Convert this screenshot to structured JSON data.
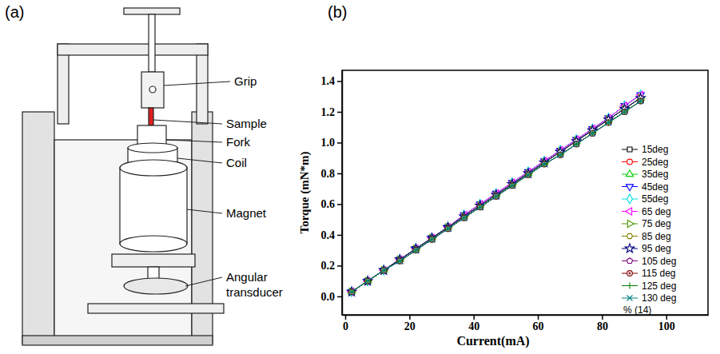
{
  "figure": {
    "panel_a": {
      "label": "(a)",
      "parts": [
        "Grip",
        "Sample",
        "Fork",
        "Coil",
        "Magnet",
        "Angular transducer"
      ]
    }
  },
  "chart_data": {
    "type": "line",
    "panel_label": "(b)",
    "x_label": "Current(mA)",
    "y_label": "Torque (mN*m)",
    "xlim": [
      -1,
      113
    ],
    "xticks": [
      0,
      20,
      40,
      60,
      80,
      100
    ],
    "ylim": [
      -0.12,
      1.47
    ],
    "yticks": [
      {
        "value": 0,
        "label": "0.0"
      },
      0.2,
      0.4,
      0.6,
      0.8,
      {
        "value": 1,
        "label": "1.0"
      },
      1.2,
      1.4
    ],
    "legend": "lower right",
    "annotations": [
      "% (14)"
    ],
    "x": [
      2,
      7,
      12,
      17,
      22,
      27,
      32,
      37,
      42,
      47,
      52,
      57,
      62,
      67,
      72,
      77,
      82,
      87,
      92
    ],
    "series": [
      {
        "name": "15deg",
        "color": "#000000",
        "marker": "square",
        "values": [
          0.03,
          0.1,
          0.17,
          0.24,
          0.31,
          0.38,
          0.45,
          0.52,
          0.59,
          0.66,
          0.73,
          0.8,
          0.87,
          0.94,
          1.01,
          1.08,
          1.15,
          1.22,
          1.29
        ]
      },
      {
        "name": "25deg",
        "color": "#ff0000",
        "marker": "circle",
        "values": [
          0.03,
          0.1,
          0.17,
          0.24,
          0.31,
          0.38,
          0.45,
          0.52,
          0.59,
          0.66,
          0.73,
          0.8,
          0.87,
          0.94,
          1.01,
          1.08,
          1.15,
          1.22,
          1.29
        ]
      },
      {
        "name": "35deg",
        "color": "#00cc00",
        "marker": "triangle-up",
        "values": [
          0.03,
          0.1,
          0.17,
          0.24,
          0.31,
          0.38,
          0.45,
          0.52,
          0.59,
          0.66,
          0.73,
          0.8,
          0.87,
          0.94,
          1.01,
          1.08,
          1.15,
          1.22,
          1.29
        ]
      },
      {
        "name": "45deg",
        "color": "#0000ff",
        "marker": "triangle-down",
        "values": [
          0.03,
          0.1,
          0.17,
          0.24,
          0.31,
          0.38,
          0.45,
          0.53,
          0.6,
          0.67,
          0.74,
          0.81,
          0.88,
          0.95,
          1.02,
          1.09,
          1.16,
          1.24,
          1.31
        ]
      },
      {
        "name": "55deg",
        "color": "#00e0e0",
        "marker": "diamond",
        "values": [
          0.03,
          0.1,
          0.17,
          0.24,
          0.31,
          0.38,
          0.45,
          0.53,
          0.6,
          0.67,
          0.74,
          0.81,
          0.88,
          0.95,
          1.02,
          1.09,
          1.16,
          1.24,
          1.31
        ]
      },
      {
        "name": "65 deg",
        "color": "#ff00ff",
        "marker": "triangle-left",
        "values": [
          0.03,
          0.1,
          0.17,
          0.24,
          0.31,
          0.38,
          0.45,
          0.53,
          0.6,
          0.67,
          0.74,
          0.81,
          0.88,
          0.95,
          1.02,
          1.09,
          1.16,
          1.24,
          1.31
        ]
      },
      {
        "name": "75 deg",
        "color": "#4d9900",
        "marker": "triangle-right",
        "values": [
          0.03,
          0.1,
          0.17,
          0.24,
          0.31,
          0.38,
          0.45,
          0.52,
          0.59,
          0.66,
          0.73,
          0.8,
          0.87,
          0.94,
          1.01,
          1.08,
          1.15,
          1.22,
          1.29
        ]
      },
      {
        "name": "85 deg",
        "color": "#808000",
        "marker": "hexagon",
        "values": [
          0.03,
          0.1,
          0.17,
          0.24,
          0.31,
          0.38,
          0.45,
          0.52,
          0.59,
          0.66,
          0.73,
          0.8,
          0.87,
          0.94,
          1.01,
          1.08,
          1.15,
          1.22,
          1.29
        ]
      },
      {
        "name": "95 deg",
        "color": "#000080",
        "marker": "star",
        "values": [
          0.03,
          0.1,
          0.17,
          0.24,
          0.31,
          0.38,
          0.45,
          0.52,
          0.59,
          0.66,
          0.73,
          0.8,
          0.87,
          0.94,
          1.01,
          1.08,
          1.15,
          1.22,
          1.29
        ]
      },
      {
        "name": "105 deg",
        "color": "#800080",
        "marker": "pentagon",
        "values": [
          0.03,
          0.1,
          0.17,
          0.23,
          0.3,
          0.37,
          0.44,
          0.51,
          0.58,
          0.65,
          0.72,
          0.79,
          0.86,
          0.92,
          0.99,
          1.06,
          1.13,
          1.2,
          1.27
        ]
      },
      {
        "name": "115 deg",
        "color": "#800000",
        "marker": "circle-dot",
        "values": [
          0.03,
          0.1,
          0.17,
          0.23,
          0.3,
          0.37,
          0.44,
          0.51,
          0.58,
          0.65,
          0.72,
          0.79,
          0.86,
          0.92,
          0.99,
          1.06,
          1.13,
          1.2,
          1.27
        ]
      },
      {
        "name": "125 deg",
        "color": "#008000",
        "marker": "plus",
        "values": [
          0.03,
          0.1,
          0.17,
          0.23,
          0.3,
          0.37,
          0.44,
          0.51,
          0.58,
          0.65,
          0.72,
          0.79,
          0.86,
          0.92,
          0.99,
          1.06,
          1.13,
          1.2,
          1.27
        ]
      },
      {
        "name": "130 deg",
        "color": "#008080",
        "marker": "x",
        "values": [
          0.03,
          0.1,
          0.17,
          0.23,
          0.3,
          0.37,
          0.44,
          0.51,
          0.58,
          0.65,
          0.72,
          0.79,
          0.86,
          0.92,
          0.99,
          1.06,
          1.13,
          1.2,
          1.27
        ]
      }
    ]
  }
}
